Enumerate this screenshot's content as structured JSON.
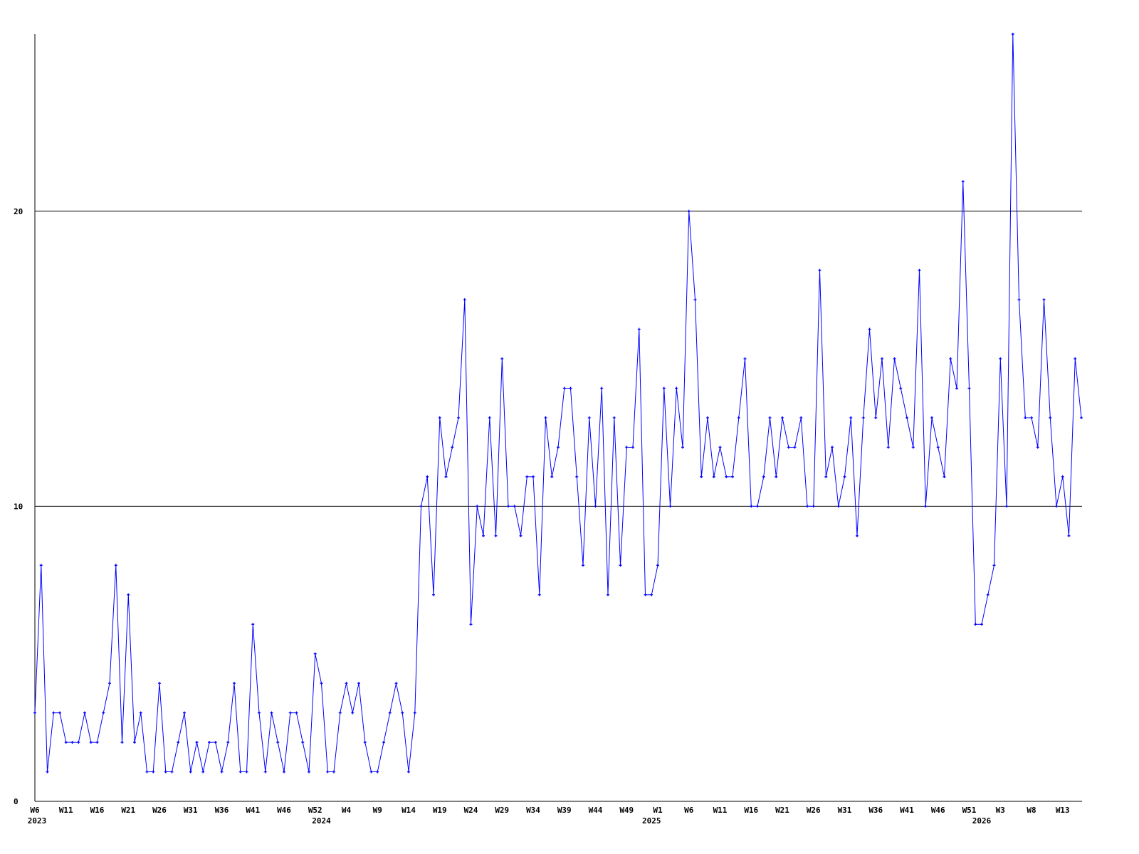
{
  "chart_data": {
    "type": "line",
    "title": "",
    "xlabel": "",
    "ylabel": "",
    "ylim": [
      0,
      26
    ],
    "grid": {
      "horizontal": true,
      "vertical": false
    },
    "y_ticks": [
      0,
      10,
      20
    ],
    "line_color": "#0000ff",
    "x_tick_labels": [
      {
        "i": 0,
        "label": "W6"
      },
      {
        "i": 5,
        "label": "W11"
      },
      {
        "i": 10,
        "label": "W16"
      },
      {
        "i": 15,
        "label": "W21"
      },
      {
        "i": 20,
        "label": "W26"
      },
      {
        "i": 25,
        "label": "W31"
      },
      {
        "i": 30,
        "label": "W36"
      },
      {
        "i": 35,
        "label": "W41"
      },
      {
        "i": 40,
        "label": "W46"
      },
      {
        "i": 45,
        "label": "W52"
      },
      {
        "i": 50,
        "label": "W4"
      },
      {
        "i": 55,
        "label": "W9"
      },
      {
        "i": 60,
        "label": "W14"
      },
      {
        "i": 65,
        "label": "W19"
      },
      {
        "i": 70,
        "label": "W24"
      },
      {
        "i": 75,
        "label": "W29"
      },
      {
        "i": 80,
        "label": "W34"
      },
      {
        "i": 85,
        "label": "W39"
      },
      {
        "i": 90,
        "label": "W44"
      },
      {
        "i": 95,
        "label": "W49"
      },
      {
        "i": 100,
        "label": "W1"
      },
      {
        "i": 105,
        "label": "W6"
      },
      {
        "i": 110,
        "label": "W11"
      },
      {
        "i": 115,
        "label": "W16"
      },
      {
        "i": 120,
        "label": "W21"
      },
      {
        "i": 125,
        "label": "W26"
      },
      {
        "i": 130,
        "label": "W31"
      },
      {
        "i": 135,
        "label": "W36"
      },
      {
        "i": 140,
        "label": "W41"
      },
      {
        "i": 145,
        "label": "W46"
      },
      {
        "i": 150,
        "label": "W51"
      },
      {
        "i": 155,
        "label": "W3"
      },
      {
        "i": 160,
        "label": "W8"
      },
      {
        "i": 165,
        "label": "W13"
      }
    ],
    "year_labels": [
      {
        "i": 0,
        "label": "2023"
      },
      {
        "i": 46,
        "label": "2024"
      },
      {
        "i": 99,
        "label": "2025"
      },
      {
        "i": 152,
        "label": "2026"
      }
    ],
    "values": [
      3,
      8,
      1,
      3,
      3,
      2,
      2,
      2,
      3,
      2,
      2,
      3,
      4,
      8,
      2,
      7,
      2,
      3,
      1,
      1,
      4,
      1,
      1,
      2,
      3,
      1,
      2,
      1,
      2,
      2,
      1,
      2,
      4,
      1,
      1,
      6,
      3,
      1,
      3,
      2,
      1,
      3,
      3,
      2,
      1,
      5,
      4,
      1,
      1,
      3,
      4,
      3,
      4,
      2,
      1,
      1,
      2,
      3,
      4,
      3,
      1,
      3,
      10,
      11,
      7,
      13,
      11,
      12,
      13,
      17,
      6,
      10,
      9,
      13,
      9,
      15,
      10,
      10,
      9,
      11,
      11,
      7,
      13,
      11,
      12,
      14,
      14,
      11,
      8,
      13,
      10,
      14,
      7,
      13,
      8,
      12,
      12,
      16,
      7,
      7,
      8,
      14,
      10,
      14,
      12,
      20,
      17,
      11,
      13,
      11,
      12,
      11,
      11,
      13,
      15,
      10,
      10,
      11,
      13,
      11,
      13,
      12,
      12,
      13,
      10,
      10,
      18,
      11,
      12,
      10,
      11,
      13,
      9,
      13,
      16,
      13,
      15,
      12,
      15,
      14,
      13,
      12,
      18,
      10,
      13,
      12,
      11,
      15,
      14,
      21,
      14,
      6,
      6,
      7,
      8,
      15,
      10,
      26,
      17,
      13,
      13,
      12,
      17,
      13,
      10,
      11,
      9,
      15,
      13
    ]
  }
}
